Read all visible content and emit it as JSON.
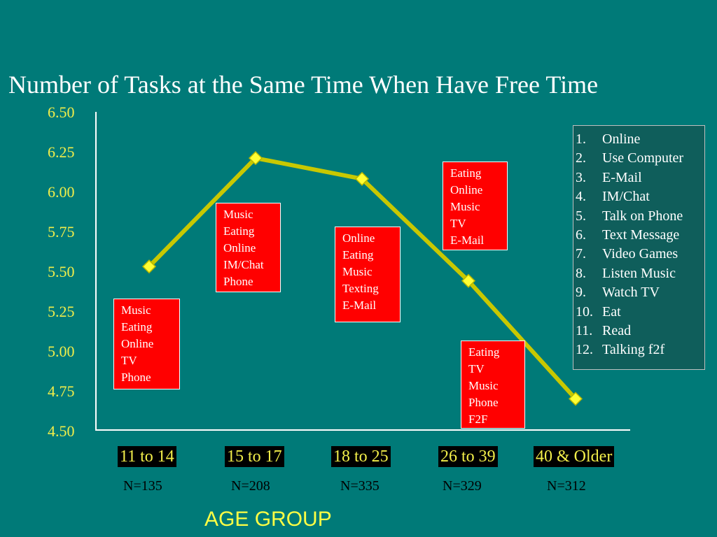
{
  "chart_data": {
    "type": "line",
    "title": "Number of Tasks at the Same Time When Have Free Time",
    "xlabel": "AGE GROUP",
    "ylabel": "",
    "ylim": [
      4.5,
      6.5
    ],
    "yticks": [
      "6.50",
      "6.25",
      "6.00",
      "5.75",
      "5.50",
      "5.25",
      "5.00",
      "4.75",
      "4.50"
    ],
    "categories": [
      "11 to 14",
      "15 to 17",
      "18 to 25",
      "26 to 39",
      "40 & Older"
    ],
    "n_counts": [
      "N=135",
      "N=208",
      "N=335",
      "N=329",
      "N=312"
    ],
    "series": [
      {
        "values": [
          5.53,
          6.21,
          6.08,
          5.44,
          4.7
        ],
        "color": "#c8c800",
        "marker_color": "#ffff33"
      }
    ],
    "grid": false,
    "legend_items": [
      {
        "num": "1.",
        "label": "Online"
      },
      {
        "num": "2.",
        "label": "Use Computer"
      },
      {
        "num": "3.",
        "label": "E-Mail"
      },
      {
        "num": "4.",
        "label": "IM/Chat"
      },
      {
        "num": "5.",
        "label": "Talk on Phone"
      },
      {
        "num": "6.",
        "label": "Text Message"
      },
      {
        "num": "7.",
        "label": "Video Games"
      },
      {
        "num": "8.",
        "label": "Listen Music"
      },
      {
        "num": "9.",
        "label": "Watch TV"
      },
      {
        "num": "10.",
        "label": "Eat"
      },
      {
        "num": "11.",
        "label": "Read"
      },
      {
        "num": "12.",
        "label": "Talking f2f"
      }
    ],
    "task_boxes": [
      {
        "group": "11 to 14",
        "lines": [
          "Music",
          "Eating",
          "Online",
          "TV",
          "Phone"
        ]
      },
      {
        "group": "15 to 17",
        "lines": [
          "Music",
          "Eating",
          "Online",
          "IM/Chat",
          "Phone"
        ]
      },
      {
        "group": "18 to 25",
        "lines": [
          "Online",
          "Eating",
          "Music",
          "Texting",
          "E-Mail"
        ]
      },
      {
        "group": "26 to 39",
        "lines": [
          "Eating",
          "Online",
          "Music",
          "TV",
          "E-Mail"
        ]
      },
      {
        "group": "40 & Older",
        "lines": [
          "Eating",
          "TV",
          "Music",
          "Phone",
          "F2F"
        ]
      }
    ],
    "colors": {
      "background": "#007a78",
      "tick_text": "#f2ee4a",
      "box_fill": "#ff0000",
      "legend_fill": "#0f5e5b"
    }
  }
}
